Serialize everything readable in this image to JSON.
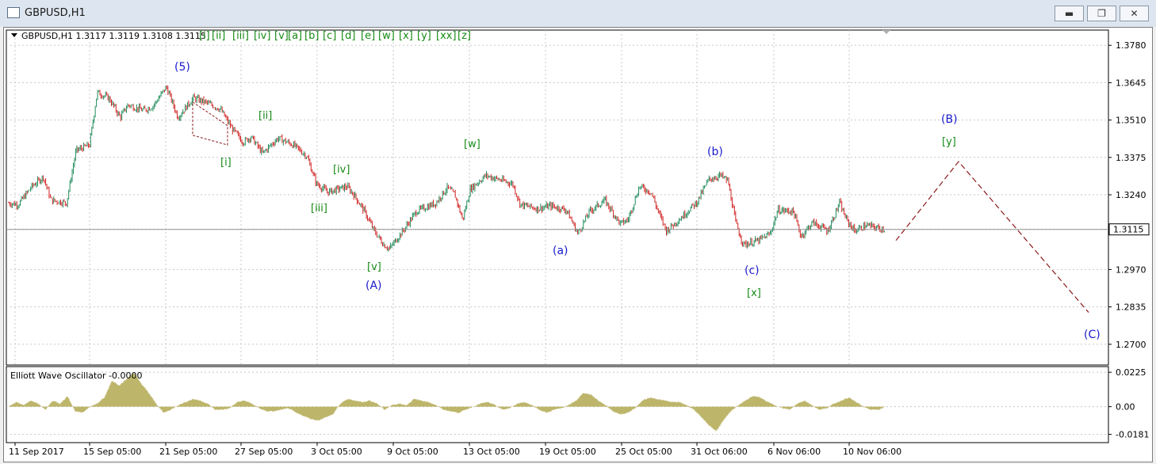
{
  "window": {
    "title": "GBPUSD,H1",
    "buttons": {
      "minimize": "▬",
      "restore": "❐",
      "close": "✕"
    }
  },
  "chart_info": {
    "symbol_line": "GBPUSD,H1  1.3117  1.3119  1.3108  1.3115",
    "wave_menu": [
      "[i]",
      "[ii]",
      "[iii]",
      "[iv]",
      "[v]",
      "[a]",
      "[b]",
      "[c]",
      "[d]",
      "[e]",
      "[w]",
      "[x]",
      "[y]",
      "[xx]",
      "[z]"
    ]
  },
  "oscillator": {
    "label": "Elliott Wave Oscillator -0.0000"
  },
  "chart_data": [
    {
      "type": "candlestick",
      "symbol": "GBPUSD",
      "timeframe": "H1",
      "ylim": [
        1.27,
        1.378
      ],
      "y_ticks": [
        "1.3780",
        "1.3645",
        "1.3510",
        "1.3375",
        "1.3240",
        "1.3115",
        "1.2970",
        "1.2835",
        "1.2700"
      ],
      "current_price": "1.3115",
      "x_ticks": [
        "11 Sep 2017",
        "15 Sep 05:00",
        "21 Sep 05:00",
        "27 Sep 05:00",
        "3 Oct 05:00",
        "9 Oct 05:00",
        "13 Oct 05:00",
        "19 Oct 05:00",
        "25 Oct 05:00",
        "31 Oct 06:00",
        "6 Nov 06:00",
        "10 Nov 06:00"
      ],
      "price_path": [
        [
          0,
          1.321
        ],
        [
          5,
          1.3205
        ],
        [
          12,
          1.327
        ],
        [
          18,
          1.3305
        ],
        [
          22,
          1.322
        ],
        [
          27,
          1.3215
        ],
        [
          30,
          1.321
        ],
        [
          35,
          1.34
        ],
        [
          42,
          1.342
        ],
        [
          46,
          1.361
        ],
        [
          52,
          1.359
        ],
        [
          58,
          1.352
        ],
        [
          62,
          1.3565
        ],
        [
          70,
          1.3545
        ],
        [
          75,
          1.356
        ],
        [
          82,
          1.363
        ],
        [
          88,
          1.352
        ],
        [
          96,
          1.359
        ],
        [
          102,
          1.3575
        ],
        [
          110,
          1.355
        ],
        [
          116,
          1.348
        ],
        [
          122,
          1.343
        ],
        [
          126,
          1.345
        ],
        [
          132,
          1.339
        ],
        [
          140,
          1.3445
        ],
        [
          148,
          1.342
        ],
        [
          155,
          1.338
        ],
        [
          160,
          1.328
        ],
        [
          166,
          1.325
        ],
        [
          176,
          1.327
        ],
        [
          180,
          1.3235
        ],
        [
          185,
          1.318
        ],
        [
          190,
          1.311
        ],
        [
          195,
          1.306
        ],
        [
          198,
          1.3045
        ],
        [
          205,
          1.311
        ],
        [
          212,
          1.318
        ],
        [
          222,
          1.321
        ],
        [
          228,
          1.3265
        ],
        [
          232,
          1.324
        ],
        [
          236,
          1.315
        ],
        [
          240,
          1.326
        ],
        [
          248,
          1.331
        ],
        [
          255,
          1.3295
        ],
        [
          262,
          1.328
        ],
        [
          266,
          1.3205
        ],
        [
          275,
          1.319
        ],
        [
          282,
          1.32
        ],
        [
          290,
          1.3185
        ],
        [
          296,
          1.31
        ],
        [
          302,
          1.318
        ],
        [
          310,
          1.322
        ],
        [
          318,
          1.3135
        ],
        [
          322,
          1.315
        ],
        [
          328,
          1.327
        ],
        [
          334,
          1.325
        ],
        [
          338,
          1.3175
        ],
        [
          342,
          1.311
        ],
        [
          350,
          1.316
        ],
        [
          358,
          1.3215
        ],
        [
          364,
          1.3295
        ],
        [
          370,
          1.331
        ],
        [
          374,
          1.329
        ],
        [
          378,
          1.314
        ],
        [
          382,
          1.306
        ],
        [
          390,
          1.3075
        ],
        [
          396,
          1.31
        ],
        [
          400,
          1.3185
        ],
        [
          408,
          1.318
        ],
        [
          412,
          1.309
        ],
        [
          418,
          1.314
        ],
        [
          426,
          1.311
        ],
        [
          432,
          1.321
        ],
        [
          436,
          1.3145
        ],
        [
          440,
          1.311
        ],
        [
          446,
          1.313
        ],
        [
          452,
          1.312
        ],
        [
          456,
          1.3115
        ]
      ],
      "projection": [
        [
          1.3075
        ],
        [
          1.336
        ],
        [
          1.2815
        ]
      ],
      "y_axis_values": [
        1.378,
        1.3645,
        1.351,
        1.3375,
        1.324,
        1.3115,
        1.297,
        1.2835,
        1.27
      ]
    },
    {
      "type": "bar",
      "name": "Elliott Wave Oscillator",
      "ylim": [
        -0.0181,
        0.0225
      ],
      "y_ticks": [
        "0.0225",
        "0.00",
        "-0.0181"
      ],
      "values": [
        0.0,
        0.003,
        0.001,
        0.004,
        0.002,
        -0.002,
        0.004,
        0.002,
        0.007,
        -0.003,
        -0.004,
        0.0,
        0.002,
        0.006,
        0.017,
        0.014,
        0.018,
        0.022,
        0.015,
        0.009,
        0.002,
        -0.004,
        -0.002,
        0.001,
        0.003,
        0.005,
        0.004,
        0.002,
        -0.002,
        -0.002,
        -0.001,
        0.003,
        0.004,
        0.002,
        -0.001,
        -0.003,
        -0.003,
        -0.002,
        -0.001,
        -0.004,
        -0.006,
        -0.008,
        -0.009,
        -0.007,
        -0.005,
        0.002,
        0.005,
        0.004,
        0.003,
        0.004,
        0.002,
        -0.002,
        0.001,
        0.002,
        0.001,
        0.005,
        0.004,
        0.003,
        0.001,
        -0.002,
        -0.003,
        -0.004,
        -0.002,
        0.0,
        0.002,
        0.003,
        0.001,
        -0.002,
        -0.001,
        0.002,
        0.003,
        0.001,
        -0.002,
        -0.004,
        -0.002,
        -0.001,
        0.001,
        0.004,
        0.009,
        0.008,
        0.004,
        0.001,
        -0.003,
        -0.005,
        -0.004,
        -0.001,
        0.004,
        0.006,
        0.005,
        0.004,
        0.003,
        0.003,
        0.001,
        -0.002,
        -0.007,
        -0.012,
        -0.016,
        -0.009,
        -0.003,
        0.001,
        0.004,
        0.007,
        0.006,
        0.003,
        0.001,
        -0.001,
        -0.002,
        0.002,
        0.004,
        0.001,
        -0.002,
        -0.001,
        0.002,
        0.004,
        0.006,
        0.003,
        0.0,
        -0.002,
        -0.002,
        0.0
      ]
    }
  ],
  "waves": [
    {
      "label": "(5)",
      "color": "blue"
    },
    {
      "label": "[i]",
      "color": "green"
    },
    {
      "label": "[ii]",
      "color": "green"
    },
    {
      "label": "[iii]",
      "color": "green"
    },
    {
      "label": "[iv]",
      "color": "green"
    },
    {
      "label": "[v]",
      "color": "green"
    },
    {
      "label": "(A)",
      "color": "blue"
    },
    {
      "label": "[w]",
      "color": "green"
    },
    {
      "label": "(a)",
      "color": "blue"
    },
    {
      "label": "(b)",
      "color": "blue"
    },
    {
      "label": "(c)",
      "color": "blue"
    },
    {
      "label": "[x]",
      "color": "green"
    },
    {
      "label": "(B)",
      "color": "blue"
    },
    {
      "label": "[y]",
      "color": "green"
    },
    {
      "label": "(C)",
      "color": "blue"
    }
  ],
  "colors": {
    "candle_up": "#1f8a5a",
    "candle_down": "#d22222",
    "oscillator": "#bdb56a",
    "projection": "#8b1a1a",
    "wave_blue": "#1a1acc",
    "wave_green": "#168a16"
  }
}
